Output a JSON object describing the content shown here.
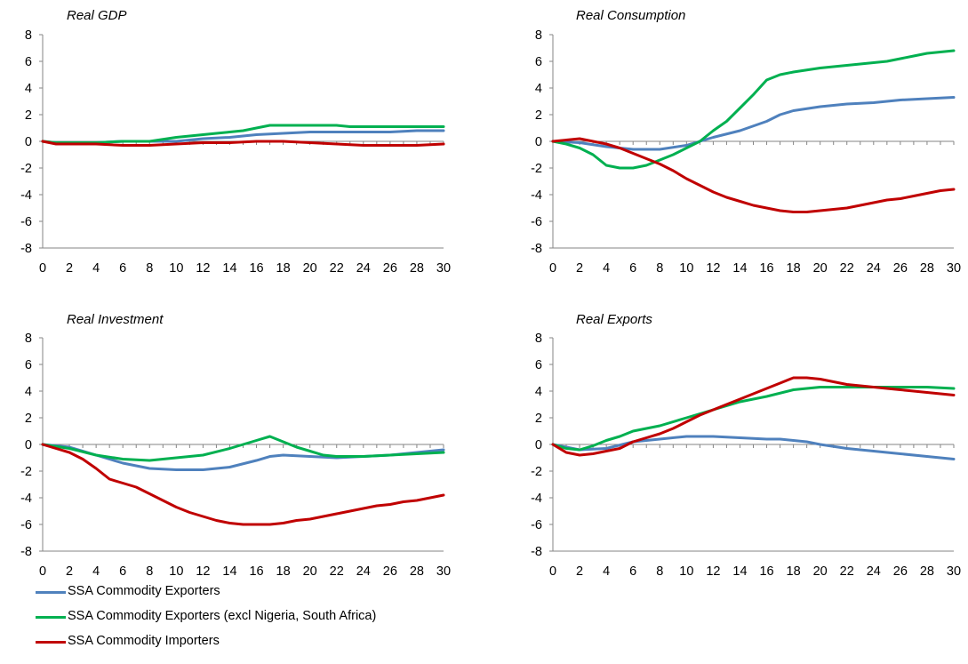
{
  "colors": {
    "exporters": "#4F81BD",
    "exporters_excl": "#00B050",
    "importers": "#C00000",
    "axis": "#868686"
  },
  "legend": [
    {
      "label": "SSA Commodity Exporters",
      "color": "#4F81BD"
    },
    {
      "label": "SSA Commodity Exporters (excl Nigeria, South Africa)",
      "color": "#00B050"
    },
    {
      "label": "SSA Commodity Importers",
      "color": "#C00000"
    }
  ],
  "chart_data": [
    {
      "type": "line",
      "title": "Real GDP",
      "xticks": [
        0,
        2,
        4,
        6,
        8,
        10,
        12,
        14,
        16,
        18,
        20,
        22,
        24,
        26,
        28,
        30
      ],
      "ylim": [
        -8,
        8
      ],
      "yticks": [
        8,
        6,
        4,
        2,
        0,
        -2,
        -4,
        -6,
        -8
      ],
      "legend": "bottom-left",
      "series": [
        {
          "name": "SSA Commodity Exporters",
          "color": "#4F81BD",
          "x": [
            0,
            1,
            2,
            4,
            6,
            8,
            10,
            12,
            14,
            16,
            18,
            20,
            22,
            24,
            26,
            28,
            30
          ],
          "y": [
            0,
            -0.1,
            -0.1,
            -0.1,
            0,
            0,
            0,
            0.2,
            0.3,
            0.5,
            0.6,
            0.7,
            0.7,
            0.7,
            0.7,
            0.8,
            0.8
          ]
        },
        {
          "name": "SSA Commodity Exporters (excl Nigeria, South Africa)",
          "color": "#00B050",
          "x": [
            0,
            1,
            2,
            4,
            6,
            8,
            10,
            11,
            12,
            13,
            14,
            15,
            16,
            17,
            18,
            20,
            22,
            23,
            24,
            26,
            28,
            30
          ],
          "y": [
            0,
            -0.1,
            -0.1,
            -0.1,
            0,
            0,
            0.3,
            0.4,
            0.5,
            0.6,
            0.7,
            0.8,
            1.0,
            1.2,
            1.2,
            1.2,
            1.2,
            1.1,
            1.1,
            1.1,
            1.1,
            1.1
          ]
        },
        {
          "name": "SSA Commodity Importers",
          "color": "#C00000",
          "x": [
            0,
            1,
            2,
            4,
            6,
            8,
            10,
            12,
            14,
            16,
            18,
            20,
            22,
            24,
            26,
            28,
            30
          ],
          "y": [
            0,
            -0.2,
            -0.2,
            -0.2,
            -0.3,
            -0.3,
            -0.2,
            -0.1,
            -0.1,
            0,
            0,
            -0.1,
            -0.2,
            -0.3,
            -0.3,
            -0.3,
            -0.2
          ]
        }
      ]
    },
    {
      "type": "line",
      "title": "Real Consumption",
      "xticks": [
        0,
        2,
        4,
        6,
        8,
        10,
        12,
        14,
        16,
        18,
        20,
        22,
        24,
        26,
        28,
        30
      ],
      "ylim": [
        -8,
        8
      ],
      "yticks": [
        8,
        6,
        4,
        2,
        0,
        -2,
        -4,
        -6,
        -8
      ],
      "series": [
        {
          "name": "SSA Commodity Exporters",
          "color": "#4F81BD",
          "x": [
            0,
            2,
            4,
            6,
            8,
            10,
            12,
            14,
            16,
            17,
            18,
            20,
            22,
            24,
            26,
            28,
            30
          ],
          "y": [
            0,
            -0.1,
            -0.4,
            -0.6,
            -0.6,
            -0.3,
            0.3,
            0.8,
            1.5,
            2.0,
            2.3,
            2.6,
            2.8,
            2.9,
            3.1,
            3.2,
            3.3
          ]
        },
        {
          "name": "SSA Commodity Exporters (excl Nigeria, South Africa)",
          "color": "#00B050",
          "x": [
            0,
            1,
            2,
            3,
            4,
            5,
            6,
            7,
            8,
            9,
            10,
            11,
            12,
            13,
            14,
            15,
            16,
            17,
            18,
            20,
            22,
            24,
            25,
            26,
            27,
            28,
            30
          ],
          "y": [
            0,
            -0.2,
            -0.5,
            -1.0,
            -1.8,
            -2.0,
            -2.0,
            -1.8,
            -1.4,
            -1.0,
            -0.5,
            0,
            0.8,
            1.5,
            2.5,
            3.5,
            4.6,
            5.0,
            5.2,
            5.5,
            5.7,
            5.9,
            6.0,
            6.2,
            6.4,
            6.6,
            6.8
          ]
        },
        {
          "name": "SSA Commodity Importers",
          "color": "#C00000",
          "x": [
            0,
            1,
            2,
            3,
            4,
            5,
            6,
            7,
            8,
            9,
            10,
            11,
            12,
            13,
            14,
            15,
            16,
            17,
            18,
            19,
            20,
            21,
            22,
            23,
            24,
            25,
            26,
            27,
            28,
            29,
            30
          ],
          "y": [
            0,
            0.1,
            0.2,
            0,
            -0.2,
            -0.5,
            -0.9,
            -1.3,
            -1.7,
            -2.2,
            -2.8,
            -3.3,
            -3.8,
            -4.2,
            -4.5,
            -4.8,
            -5.0,
            -5.2,
            -5.3,
            -5.3,
            -5.2,
            -5.1,
            -5.0,
            -4.8,
            -4.6,
            -4.4,
            -4.3,
            -4.1,
            -3.9,
            -3.7,
            -3.6
          ]
        }
      ]
    },
    {
      "type": "line",
      "title": "Real Investment",
      "xticks": [
        0,
        2,
        4,
        6,
        8,
        10,
        12,
        14,
        16,
        18,
        20,
        22,
        24,
        26,
        28,
        30
      ],
      "ylim": [
        -8,
        8
      ],
      "yticks": [
        8,
        6,
        4,
        2,
        0,
        -2,
        -4,
        -6,
        -8
      ],
      "series": [
        {
          "name": "SSA Commodity Exporters",
          "color": "#4F81BD",
          "x": [
            0,
            2,
            4,
            6,
            8,
            10,
            12,
            14,
            16,
            17,
            18,
            20,
            22,
            24,
            26,
            28,
            30
          ],
          "y": [
            0,
            -0.2,
            -0.8,
            -1.4,
            -1.8,
            -1.9,
            -1.9,
            -1.7,
            -1.2,
            -0.9,
            -0.8,
            -0.9,
            -1.0,
            -0.9,
            -0.8,
            -0.6,
            -0.4
          ]
        },
        {
          "name": "SSA Commodity Exporters (excl Nigeria, South Africa)",
          "color": "#00B050",
          "x": [
            0,
            2,
            4,
            6,
            8,
            10,
            12,
            14,
            15,
            16,
            17,
            18,
            19,
            20,
            21,
            22,
            24,
            26,
            28,
            30
          ],
          "y": [
            0,
            -0.3,
            -0.8,
            -1.1,
            -1.2,
            -1.0,
            -0.8,
            -0.3,
            0,
            0.3,
            0.6,
            0.2,
            -0.2,
            -0.5,
            -0.8,
            -0.9,
            -0.9,
            -0.8,
            -0.7,
            -0.6
          ]
        },
        {
          "name": "SSA Commodity Importers",
          "color": "#C00000",
          "x": [
            0,
            1,
            2,
            3,
            4,
            5,
            6,
            7,
            8,
            9,
            10,
            11,
            12,
            13,
            14,
            15,
            16,
            17,
            18,
            19,
            20,
            21,
            22,
            23,
            24,
            25,
            26,
            27,
            28,
            29,
            30
          ],
          "y": [
            0,
            -0.3,
            -0.6,
            -1.1,
            -1.8,
            -2.6,
            -2.9,
            -3.2,
            -3.7,
            -4.2,
            -4.7,
            -5.1,
            -5.4,
            -5.7,
            -5.9,
            -6.0,
            -6.0,
            -6.0,
            -5.9,
            -5.7,
            -5.6,
            -5.4,
            -5.2,
            -5.0,
            -4.8,
            -4.6,
            -4.5,
            -4.3,
            -4.2,
            -4.0,
            -3.8
          ]
        }
      ]
    },
    {
      "type": "line",
      "title": "Real Exports",
      "xticks": [
        0,
        2,
        4,
        6,
        8,
        10,
        12,
        14,
        16,
        18,
        20,
        22,
        24,
        26,
        28,
        30
      ],
      "ylim": [
        -8,
        8
      ],
      "yticks": [
        8,
        6,
        4,
        2,
        0,
        -2,
        -4,
        -6,
        -8
      ],
      "series": [
        {
          "name": "SSA Commodity Exporters",
          "color": "#4F81BD",
          "x": [
            0,
            2,
            4,
            6,
            8,
            10,
            11,
            12,
            14,
            16,
            17,
            18,
            19,
            20,
            22,
            24,
            26,
            28,
            30
          ],
          "y": [
            0,
            -0.4,
            -0.3,
            0.2,
            0.4,
            0.6,
            0.6,
            0.6,
            0.5,
            0.4,
            0.4,
            0.3,
            0.2,
            0,
            -0.3,
            -0.5,
            -0.7,
            -0.9,
            -1.1
          ]
        },
        {
          "name": "SSA Commodity Exporters (excl Nigeria, South Africa)",
          "color": "#00B050",
          "x": [
            0,
            1,
            2,
            3,
            4,
            5,
            6,
            7,
            8,
            10,
            12,
            14,
            16,
            18,
            19,
            20,
            22,
            24,
            26,
            28,
            30
          ],
          "y": [
            0,
            -0.3,
            -0.4,
            -0.1,
            0.3,
            0.6,
            1.0,
            1.2,
            1.4,
            2.0,
            2.6,
            3.2,
            3.6,
            4.1,
            4.2,
            4.3,
            4.3,
            4.3,
            4.3,
            4.3,
            4.2
          ]
        },
        {
          "name": "SSA Commodity Importers",
          "color": "#C00000",
          "x": [
            0,
            1,
            2,
            3,
            4,
            5,
            6,
            7,
            8,
            9,
            10,
            11,
            12,
            13,
            14,
            15,
            16,
            17,
            18,
            19,
            20,
            21,
            22,
            23,
            24,
            25,
            26,
            27,
            28,
            29,
            30
          ],
          "y": [
            0,
            -0.6,
            -0.8,
            -0.7,
            -0.5,
            -0.3,
            0.2,
            0.5,
            0.8,
            1.2,
            1.7,
            2.2,
            2.6,
            3.0,
            3.4,
            3.8,
            4.2,
            4.6,
            5.0,
            5.0,
            4.9,
            4.7,
            4.5,
            4.4,
            4.3,
            4.2,
            4.1,
            4.0,
            3.9,
            3.8,
            3.7
          ]
        }
      ]
    }
  ]
}
